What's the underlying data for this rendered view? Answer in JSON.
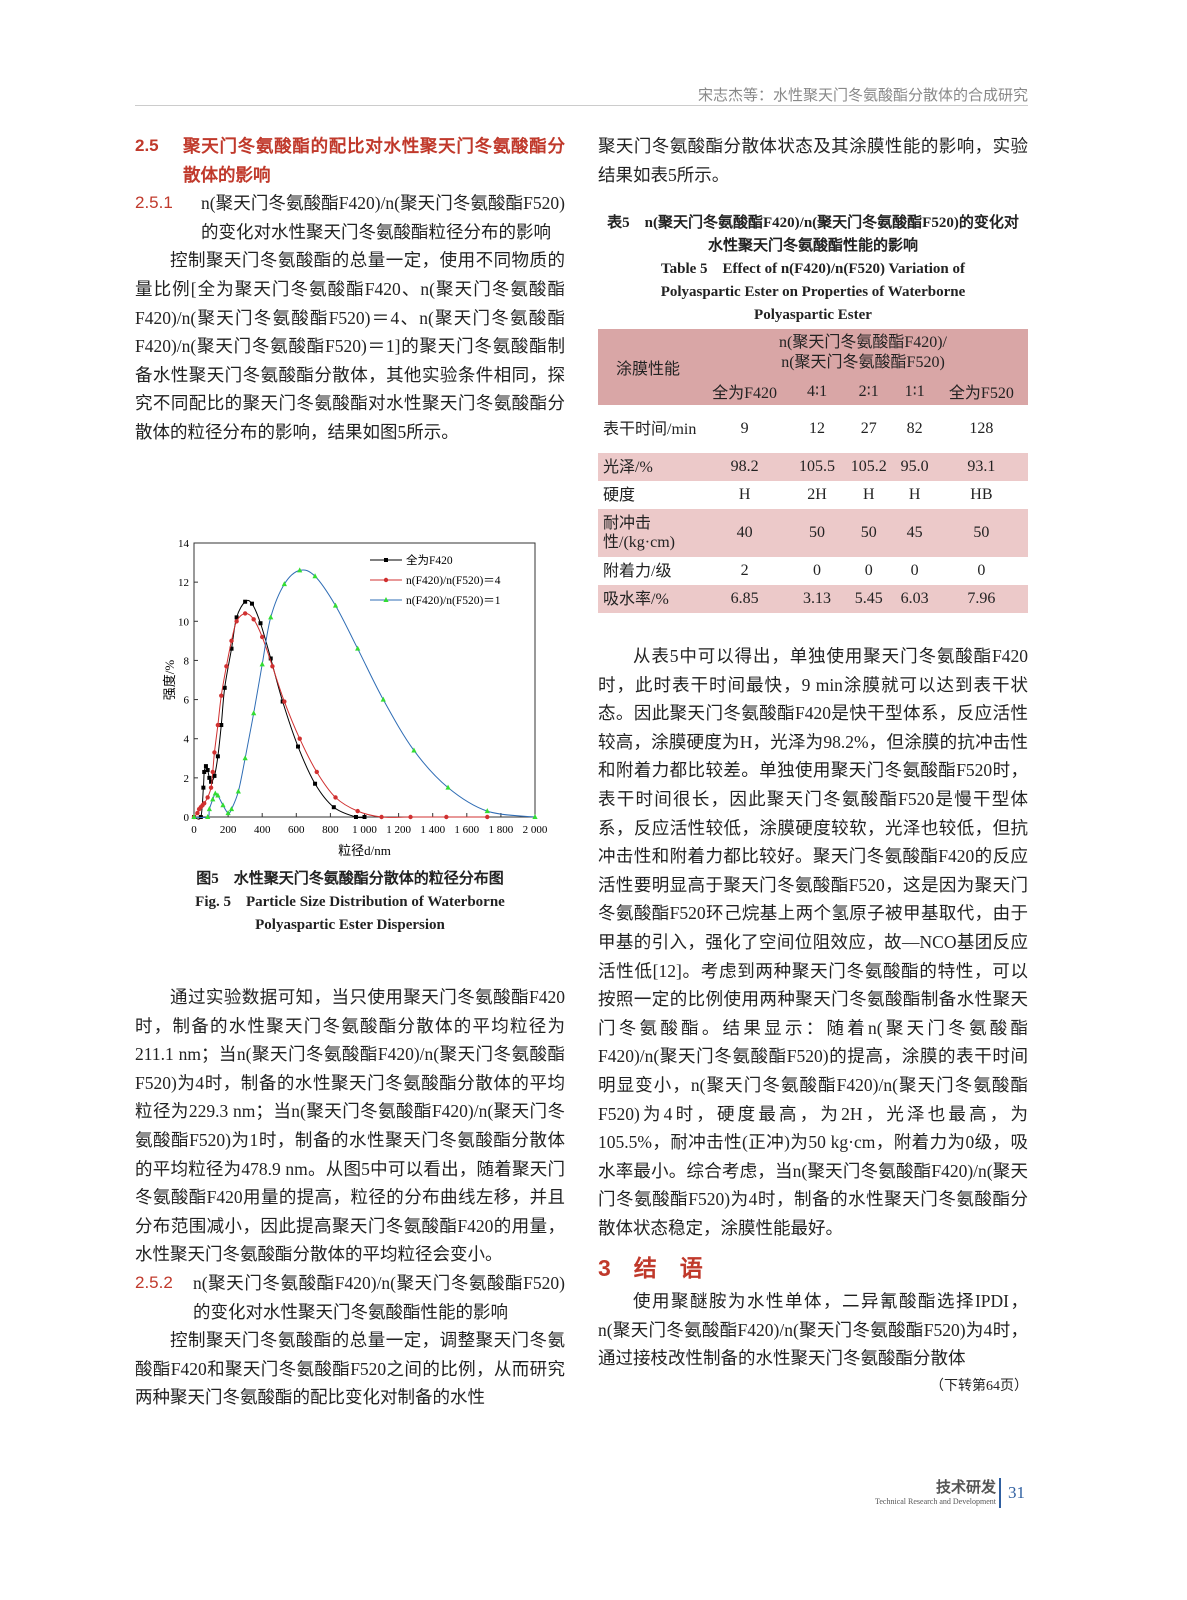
{
  "running_head": "宋志杰等：水性聚天门冬氨酸酯分散体的合成研究",
  "left": {
    "s25_num": "2.5",
    "s25_title": "聚天门冬氨酸酯的配比对水性聚天门冬氨酸酯分散体的影响",
    "s251_num": "2.5.1",
    "s251_title": "n(聚天门冬氨酸酯F420)/n(聚天门冬氨酸酯F520)的变化对水性聚天门冬氨酸酯粒径分布的影响",
    "p1": "控制聚天门冬氨酸酯的总量一定，使用不同物质的量比例[全为聚天门冬氨酸酯F420、n(聚天门冬氨酸酯F420)/n(聚天门冬氨酸酯F520)＝4、n(聚天门冬氨酸酯F420)/n(聚天门冬氨酸酯F520)＝1]的聚天门冬氨酸酯制备水性聚天门冬氨酸酯分散体，其他实验条件相同，探究不同配比的聚天门冬氨酸酯对水性聚天门冬氨酸酯分散体的粒径分布的影响，结果如图5所示。",
    "fig_caption_cn": "图5　水性聚天门冬氨酸酯分散体的粒径分布图",
    "fig_caption_en": "Fig. 5　Particle Size Distribution of Waterborne Polyaspartic Ester Dispersion",
    "p2": "通过实验数据可知，当只使用聚天门冬氨酸酯F420时，制备的水性聚天门冬氨酸酯分散体的平均粒径为211.1 nm；当n(聚天门冬氨酸酯F420)/n(聚天门冬氨酸酯F520)为4时，制备的水性聚天门冬氨酸酯分散体的平均粒径为229.3 nm；当n(聚天门冬氨酸酯F420)/n(聚天门冬氨酸酯F520)为1时，制备的水性聚天门冬氨酸酯分散体的平均粒径为478.9 nm。从图5中可以看出，随着聚天门冬氨酸酯F420用量的提高，粒径的分布曲线左移，并且分布范围减小，因此提高聚天门冬氨酸酯F420的用量，水性聚天门冬氨酸酯分散体的平均粒径会变小。",
    "s252_num": "2.5.2",
    "s252_title": "n(聚天门冬氨酸酯F420)/n(聚天门冬氨酸酯F520)的变化对水性聚天门冬氨酸酯性能的影响",
    "p3": "控制聚天门冬氨酸酯的总量一定，调整聚天门冬氨酸酯F420和聚天门冬氨酸酯F520之间的比例，从而研究两种聚天门冬氨酸酯的配比变化对制备的水性"
  },
  "right": {
    "p3_cont": "聚天门冬氨酸酯分散体状态及其涂膜性能的影响，实验结果如表5所示。",
    "table_caption_cn": "表5　n(聚天门冬氨酸酯F420)/n(聚天门冬氨酸酯F520)的变化对水性聚天门冬氨酸酯性能的影响",
    "table_caption_en": "Table 5　Effect of n(F420)/n(F520) Variation of Polyaspartic Ester on Properties of Waterborne Polyaspartic Ester",
    "table": {
      "row_header": "涂膜性能",
      "group_header_1": "n(聚天门冬氨酸酯F420)/",
      "group_header_2": "n(聚天门冬氨酸酯F520)",
      "columns": [
        "全为F420",
        "4∶1",
        "2∶1",
        "1∶1",
        "全为F520"
      ],
      "rows": [
        {
          "label": "表干时间/min",
          "values": [
            "9",
            "12",
            "27",
            "82",
            "128"
          ]
        },
        {
          "label": "光泽/%",
          "values": [
            "98.2",
            "105.5",
            "105.2",
            "95.0",
            "93.1"
          ]
        },
        {
          "label": "硬度",
          "values": [
            "H",
            "2H",
            "H",
            "H",
            "HB"
          ]
        },
        {
          "label": "耐冲击性/(kg·cm)",
          "values": [
            "40",
            "50",
            "50",
            "45",
            "50"
          ]
        },
        {
          "label": "附着力/级",
          "values": [
            "2",
            "0",
            "0",
            "0",
            "0"
          ]
        },
        {
          "label": "吸水率/%",
          "values": [
            "6.85",
            "3.13",
            "5.45",
            "6.03",
            "7.96"
          ]
        }
      ]
    },
    "p4": "从表5中可以得出，单独使用聚天门冬氨酸酯F420时，此时表干时间最快，9 min涂膜就可以达到表干状态。因此聚天门冬氨酸酯F420是快干型体系，反应活性较高，涂膜硬度为H，光泽为98.2%，但涂膜的抗冲击性和附着力都比较差。单独使用聚天门冬氨酸酯F520时，表干时间很长，因此聚天门冬氨酸酯F520是慢干型体系，反应活性较低，涂膜硬度较软，光泽也较低，但抗冲击性和附着力都比较好。聚天门冬氨酸酯F420的反应活性要明显高于聚天门冬氨酸酯F520，这是因为聚天门冬氨酸酯F520环己烷基上两个氢原子被甲基取代，由于甲基的引入，强化了空间位阻效应，故—NCO基团反应活性低[12]。考虑到两种聚天门冬氨酸酯的特性，可以按照一定的比例使用两种聚天门冬氨酸酯制备水性聚天门冬氨酸酯。结果显示：随着n(聚天门冬氨酸酯F420)/n(聚天门冬氨酸酯F520)的提高，涂膜的表干时间明显变小，n(聚天门冬氨酸酯F420)/n(聚天门冬氨酸酯F520)为4时，硬度最高，为2H，光泽也最高，为105.5%，耐冲击性(正冲)为50 kg·cm，附着力为0级，吸水率最小。综合考虑，当n(聚天门冬氨酸酯F420)/n(聚天门冬氨酸酯F520)为4时，制备的水性聚天门冬氨酸酯分散体状态稳定，涂膜性能最好。",
    "s3_title": "3　结　语",
    "p5": "使用聚醚胺为水性单体，二异氰酸酯选择IPDI，n(聚天门冬氨酸酯F420)/n(聚天门冬氨酸酯F520)为4时，通过接枝改性制备的水性聚天门冬氨酸酯分散体",
    "continued": "（下转第64页）"
  },
  "footer": {
    "section_cn": "技术研发",
    "section_en": "Technical Research and Development",
    "page_number": "31"
  },
  "colors": {
    "heading": "#c0392b",
    "table_header": "#d9a6a6",
    "table_alt_row": "#ecc9c9"
  },
  "chart_data": {
    "type": "line",
    "xlabel": "粒径d/nm",
    "ylabel": "强度/%",
    "xlim": [
      0,
      2000
    ],
    "ylim": [
      0,
      14
    ],
    "xticks": [
      "0",
      "200",
      "400",
      "600",
      "800",
      "1 000",
      "1 200",
      "1 400",
      "1 600",
      "1 800",
      "2 000"
    ],
    "yticks": [
      "0",
      "2",
      "4",
      "6",
      "8",
      "10",
      "12",
      "14"
    ],
    "legend_position": "top-right",
    "grid": false,
    "series": [
      {
        "name": "全为F420",
        "color": "#000000",
        "marker": "square",
        "x": [
          0,
          40,
          55,
          60,
          70,
          80,
          90,
          100,
          120,
          140,
          160,
          180,
          220,
          250,
          300,
          340,
          390,
          450,
          520,
          610,
          710,
          820,
          950,
          1000
        ],
        "y": [
          0,
          0,
          1.5,
          2.3,
          2.6,
          2.4,
          2.0,
          1.8,
          2.1,
          3.1,
          4.7,
          6.6,
          8.6,
          10.2,
          11.0,
          10.9,
          9.9,
          8.1,
          5.9,
          3.6,
          1.7,
          0.5,
          0,
          0
        ]
      },
      {
        "name": "n(F420)/n(F520)＝4",
        "color": "#d03030",
        "marker": "circle",
        "x": [
          0,
          20,
          30,
          40,
          50,
          60,
          80,
          100,
          110,
          120,
          140,
          160,
          190,
          220,
          250,
          300,
          350,
          400,
          460,
          530,
          620,
          720,
          830,
          960,
          1100,
          1270,
          1480,
          1720
        ],
        "y": [
          0,
          0.2,
          0.4,
          0.5,
          0.6,
          0.7,
          1.0,
          1.5,
          2.3,
          3.3,
          4.7,
          6.2,
          7.7,
          9.0,
          10.0,
          10.4,
          10.1,
          9.2,
          7.7,
          5.9,
          4.0,
          2.3,
          1.0,
          0.3,
          0,
          0,
          0,
          0
        ]
      },
      {
        "name": "n(F420)/n(F520)＝1",
        "color": "#2f6db5",
        "marker_color": "#33dd33",
        "marker": "triangle",
        "x": [
          0,
          80,
          90,
          110,
          125,
          140,
          170,
          200,
          220,
          260,
          300,
          350,
          400,
          450,
          530,
          620,
          710,
          830,
          960,
          1110,
          1290,
          1490,
          1720,
          2000
        ],
        "y": [
          0,
          0,
          0.4,
          0.9,
          1.2,
          1.1,
          0.6,
          0.2,
          0.4,
          1.3,
          3.0,
          5.3,
          7.8,
          10.2,
          11.9,
          12.6,
          12.3,
          10.8,
          8.6,
          6.0,
          3.4,
          1.5,
          0.3,
          0
        ]
      }
    ]
  }
}
